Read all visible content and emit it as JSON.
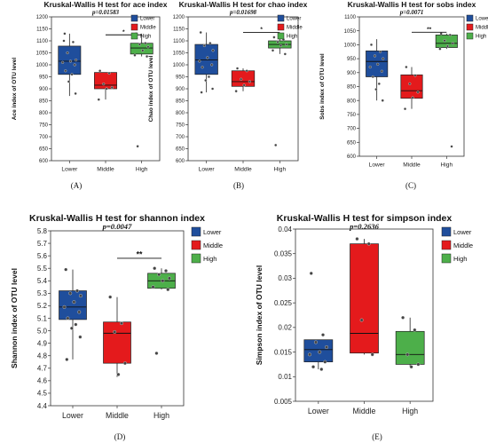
{
  "groups": [
    "Lower",
    "Middle",
    "High"
  ],
  "group_colors": {
    "Lower": "#1f4e9c",
    "Middle": "#e41a1c",
    "High": "#4daf4a"
  },
  "chart_data": [
    {
      "id": "ace",
      "type": "box",
      "panel_label": "(A)",
      "title": "Kruskal-Wallis H test for ace index",
      "p_value": "p=0.01583",
      "ylabel": "Ace index of OTU level",
      "xlabel": "",
      "ylim": [
        600,
        1200
      ],
      "yticks": [
        600,
        650,
        700,
        750,
        800,
        850,
        900,
        950,
        1000,
        1050,
        1100,
        1150,
        1200
      ],
      "categories": [
        "Lower",
        "Middle",
        "High"
      ],
      "boxes": [
        {
          "group": "Lower",
          "whisker_low": 870,
          "q1": 960,
          "median": 1015,
          "q3": 1078,
          "whisker_high": 1130
        },
        {
          "group": "Middle",
          "whisker_low": 855,
          "q1": 900,
          "median": 915,
          "q3": 968,
          "whisker_high": 968
        },
        {
          "group": "High",
          "whisker_low": 1035,
          "q1": 1045,
          "median": 1070,
          "q3": 1090,
          "whisker_high": 1130
        }
      ],
      "points": [
        [
          1100,
          1095,
          1050,
          1020,
          1015,
          1010,
          1000,
          975,
          960,
          930,
          880,
          1130
        ],
        [
          975,
          965,
          920,
          905,
          900,
          855
        ],
        [
          1130,
          1090,
          1085,
          1075,
          1060,
          1040,
          1035,
          660
        ]
      ],
      "significance": [
        {
          "from": "Middle",
          "to": "High",
          "label": "*",
          "y": 1125
        }
      ]
    },
    {
      "id": "chao",
      "type": "box",
      "panel_label": "(B)",
      "title": "Kruskal-Wallis H test for chao index",
      "p_value": "p=0.01698",
      "ylabel": "Chao index of OTU level",
      "xlabel": "",
      "ylim": [
        600,
        1200
      ],
      "yticks": [
        600,
        650,
        700,
        750,
        800,
        850,
        900,
        950,
        1000,
        1050,
        1100,
        1150,
        1200
      ],
      "categories": [
        "Lower",
        "Middle",
        "High"
      ],
      "boxes": [
        {
          "group": "Lower",
          "whisker_low": 885,
          "q1": 960,
          "median": 1020,
          "q3": 1085,
          "whisker_high": 1135
        },
        {
          "group": "Middle",
          "whisker_low": 890,
          "q1": 910,
          "median": 930,
          "q3": 975,
          "whisker_high": 985
        },
        {
          "group": "High",
          "whisker_low": 1045,
          "q1": 1070,
          "median": 1085,
          "q3": 1100,
          "whisker_high": 1115
        }
      ],
      "points": [
        [
          1135,
          1090,
          1080,
          1060,
          1030,
          1015,
          1000,
          990,
          950,
          935,
          900,
          885
        ],
        [
          985,
          975,
          940,
          930,
          915,
          890
        ],
        [
          1115,
          1105,
          1095,
          1085,
          1080,
          1060,
          1045,
          665
        ]
      ],
      "significance": [
        {
          "from": "Middle",
          "to": "High",
          "label": "*",
          "y": 1135
        }
      ]
    },
    {
      "id": "sobs",
      "type": "box",
      "panel_label": "(C)",
      "title": "Kruskal-Wallis H test for sobs index",
      "p_value": "p=0.0071",
      "ylabel": "Sobs index of OTU level",
      "xlabel": "",
      "ylim": [
        600,
        1100
      ],
      "yticks": [
        600,
        650,
        700,
        750,
        800,
        850,
        900,
        950,
        1000,
        1050,
        1100
      ],
      "categories": [
        "Lower",
        "Middle",
        "High"
      ],
      "boxes": [
        {
          "group": "Lower",
          "whisker_low": 800,
          "q1": 885,
          "median": 940,
          "q3": 978,
          "whisker_high": 1020
        },
        {
          "group": "Middle",
          "whisker_low": 770,
          "q1": 808,
          "median": 835,
          "q3": 892,
          "whisker_high": 920
        },
        {
          "group": "High",
          "whisker_low": 985,
          "q1": 990,
          "median": 1005,
          "q3": 1035,
          "whisker_high": 1040
        }
      ],
      "points": [
        [
          1000,
          975,
          960,
          950,
          930,
          920,
          905,
          885,
          860,
          840,
          800
        ],
        [
          920,
          890,
          860,
          830,
          810,
          770
        ],
        [
          1040,
          1035,
          1015,
          1005,
          995,
          985,
          635
        ]
      ],
      "significance": [
        {
          "from": "Middle",
          "to": "High",
          "label": "**",
          "y": 1045
        }
      ]
    },
    {
      "id": "shannon",
      "type": "box",
      "panel_label": "(D)",
      "title": "Kruskal-Wallis H test for shannon index",
      "p_value": "p=0.0047",
      "ylabel": "Shannon index of OTU level",
      "xlabel": "",
      "ylim": [
        4.4,
        5.8
      ],
      "yticks": [
        4.4,
        4.5,
        4.6,
        4.7,
        4.8,
        4.9,
        5.0,
        5.1,
        5.2,
        5.3,
        5.4,
        5.5,
        5.6,
        5.7,
        5.8
      ],
      "categories": [
        "Lower",
        "Middle",
        "High"
      ],
      "boxes": [
        {
          "group": "Lower",
          "whisker_low": 4.77,
          "q1": 5.09,
          "median": 5.19,
          "q3": 5.32,
          "whisker_high": 5.49
        },
        {
          "group": "Middle",
          "whisker_low": 4.63,
          "q1": 4.74,
          "median": 4.98,
          "q3": 5.07,
          "whisker_high": 5.27
        },
        {
          "group": "High",
          "whisker_low": 5.33,
          "q1": 5.34,
          "median": 5.4,
          "q3": 5.46,
          "whisker_high": 5.5
        }
      ],
      "points": [
        [
          5.49,
          5.32,
          5.3,
          5.28,
          5.23,
          5.19,
          5.15,
          5.1,
          5.05,
          5.02,
          4.95,
          4.77
        ],
        [
          5.27,
          5.06,
          4.99,
          4.74,
          4.65
        ],
        [
          5.5,
          5.48,
          5.45,
          5.42,
          5.4,
          5.35,
          5.33,
          4.82
        ]
      ],
      "significance": [
        {
          "from": "Middle",
          "to": "High",
          "label": "**",
          "y": 5.58
        }
      ]
    },
    {
      "id": "simpson",
      "type": "box",
      "panel_label": "(E)",
      "title": "Kruskal-Wallis H test for simpson index",
      "p_value": "p=0.2636",
      "ylabel": "Simpson index of OTU level",
      "xlabel": "",
      "ylim": [
        0.005,
        0.04
      ],
      "yticks": [
        0.005,
        0.01,
        0.015,
        0.02,
        0.025,
        0.03,
        0.035,
        0.04
      ],
      "categories": [
        "Lower",
        "Middle",
        "High"
      ],
      "boxes": [
        {
          "group": "Lower",
          "whisker_low": 0.0115,
          "q1": 0.013,
          "median": 0.0155,
          "q3": 0.0175,
          "whisker_high": 0.0175
        },
        {
          "group": "Middle",
          "whisker_low": 0.0145,
          "q1": 0.0148,
          "median": 0.0188,
          "q3": 0.037,
          "whisker_high": 0.038
        },
        {
          "group": "High",
          "whisker_low": 0.012,
          "q1": 0.0125,
          "median": 0.0145,
          "q3": 0.0192,
          "whisker_high": 0.022
        }
      ],
      "points": [
        [
          0.031,
          0.0185,
          0.017,
          0.016,
          0.015,
          0.0145,
          0.013,
          0.012,
          0.0115
        ],
        [
          0.038,
          0.037,
          0.0215,
          0.0145
        ],
        [
          0.022,
          0.0195,
          0.0145,
          0.0125,
          0.012
        ]
      ],
      "significance": []
    }
  ]
}
